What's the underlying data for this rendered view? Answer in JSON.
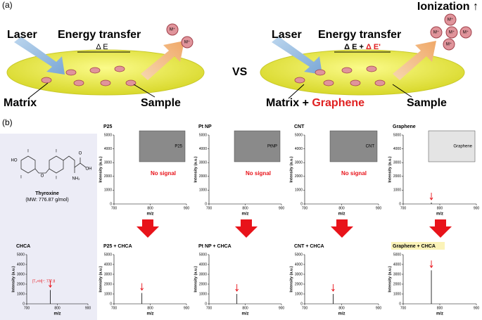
{
  "panel_a": {
    "label": "(a)",
    "vs": "VS",
    "left": {
      "laser": "Laser",
      "energy": "Energy transfer",
      "delta": "Δ E",
      "matrix": "Matrix",
      "sample": "Sample",
      "ions": [
        "M⁺",
        "M⁺"
      ]
    },
    "right": {
      "ionization": "Ionization ↑",
      "laser": "Laser",
      "energy": "Energy transfer",
      "delta": "Δ E + ",
      "delta_extra": "Δ E'",
      "matrix": "Matrix + ",
      "graphene": "Graphene",
      "sample": "Sample",
      "ions": [
        "M⁺",
        "M⁺",
        "M⁺",
        "M⁺",
        "M⁺"
      ]
    }
  },
  "panel_b": {
    "label": "(b)",
    "compound": {
      "name": "Thyroxine",
      "mw": "(MW: 776.87 g/mol)",
      "atoms": [
        "HO",
        "I",
        "I",
        "O",
        "I",
        "I",
        "NH₂",
        "OH",
        "O"
      ]
    },
    "chart_data": [
      {
        "type": "bar",
        "title": "P25",
        "xlabel": "m/z",
        "ylabel": "Intensity (a.u.)",
        "xlim": [
          700,
          900
        ],
        "xticks": [
          700,
          800,
          900
        ],
        "ylim": [
          0,
          5000
        ],
        "yticks": [
          0,
          1000,
          2000,
          3000,
          4000,
          5000
        ],
        "x": [],
        "values": [],
        "note": "No signal",
        "inset": "P25"
      },
      {
        "type": "bar",
        "title": "Pt NP",
        "xlabel": "m/z",
        "ylabel": "Intensity (a.u.)",
        "xlim": [
          700,
          900
        ],
        "xticks": [
          700,
          800,
          900
        ],
        "ylim": [
          0,
          5000
        ],
        "yticks": [
          0,
          1000,
          2000,
          3000,
          4000,
          5000
        ],
        "x": [],
        "values": [],
        "note": "No signal",
        "inset": "PtNP"
      },
      {
        "type": "bar",
        "title": "CNT",
        "xlabel": "m/z",
        "ylabel": "Intensity (a.u.)",
        "xlim": [
          700,
          900
        ],
        "xticks": [
          700,
          800,
          900
        ],
        "ylim": [
          0,
          5000
        ],
        "yticks": [
          0,
          1000,
          2000,
          3000,
          4000,
          5000
        ],
        "x": [],
        "values": [],
        "note": "No signal",
        "inset": "CNT"
      },
      {
        "type": "bar",
        "title": "Graphene",
        "xlabel": "m/z",
        "ylabel": "Intensity (a.u.)",
        "xlim": [
          700,
          900
        ],
        "xticks": [
          700,
          800,
          900
        ],
        "ylim": [
          0,
          5000
        ],
        "yticks": [
          0,
          1000,
          2000,
          3000,
          4000,
          5000
        ],
        "x": [
          777
        ],
        "values": [
          100
        ],
        "inset": "Graphene"
      },
      {
        "type": "bar",
        "title": "CHCA",
        "xlabel": "m/z",
        "ylabel": "Intensity (a.u.)",
        "xlim": [
          700,
          900
        ],
        "xticks": [
          700,
          800,
          900
        ],
        "ylim": [
          0,
          5000
        ],
        "yticks": [
          0,
          1000,
          2000,
          3000,
          4000,
          5000
        ],
        "x": [
          777
        ],
        "values": [
          1400
        ],
        "annotation": "[T₄+H]⁺: 777.8"
      },
      {
        "type": "bar",
        "title": "P25 + CHCA",
        "xlabel": "m/z",
        "ylabel": "Intensity (a.u.)",
        "xlim": [
          700,
          900
        ],
        "xticks": [
          700,
          800,
          900
        ],
        "ylim": [
          0,
          5000
        ],
        "yticks": [
          0,
          1000,
          2000,
          3000,
          4000,
          5000
        ],
        "x": [
          777
        ],
        "values": [
          1100
        ]
      },
      {
        "type": "bar",
        "title": "Pt NP + CHCA",
        "xlabel": "m/z",
        "ylabel": "Intensity (a.u.)",
        "xlim": [
          700,
          900
        ],
        "xticks": [
          700,
          800,
          900
        ],
        "ylim": [
          0,
          5000
        ],
        "yticks": [
          0,
          1000,
          2000,
          3000,
          4000,
          5000
        ],
        "x": [
          777
        ],
        "values": [
          1000
        ]
      },
      {
        "type": "bar",
        "title": "CNT + CHCA",
        "xlabel": "m/z",
        "ylabel": "Intensity (a.u.)",
        "xlim": [
          700,
          900
        ],
        "xticks": [
          700,
          800,
          900
        ],
        "ylim": [
          0,
          5000
        ],
        "yticks": [
          0,
          1000,
          2000,
          3000,
          4000,
          5000
        ],
        "x": [
          777
        ],
        "values": [
          1000
        ]
      },
      {
        "type": "bar",
        "title": "Graphene + CHCA",
        "xlabel": "m/z",
        "ylabel": "Intensity (a.u.)",
        "xlim": [
          700,
          900
        ],
        "xticks": [
          700,
          800,
          900
        ],
        "ylim": [
          0,
          5000
        ],
        "yticks": [
          0,
          1000,
          2000,
          3000,
          4000,
          5000
        ],
        "x": [
          777
        ],
        "values": [
          3400
        ],
        "highlight": true
      }
    ]
  }
}
